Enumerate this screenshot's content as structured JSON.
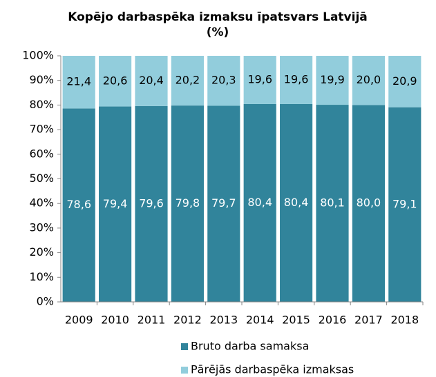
{
  "chart_data": {
    "type": "stacked_bar",
    "title": "Kopējo darbaspēka izmaksu īpatsvars Latvijā (%)",
    "categories": [
      "2009",
      "2010",
      "2011",
      "2012",
      "2013",
      "2014",
      "2015",
      "2016",
      "2017",
      "2018"
    ],
    "series": [
      {
        "name": "Bruto darba samaksa",
        "color": "#31849b",
        "values": [
          78.6,
          79.4,
          79.6,
          79.8,
          79.7,
          80.4,
          80.4,
          80.1,
          80.0,
          79.1
        ],
        "value_labels": [
          "78,6",
          "79,4",
          "79,6",
          "79,8",
          "79,7",
          "80,4",
          "80,4",
          "80,1",
          "80,0",
          "79,1"
        ]
      },
      {
        "name": "Pārējās darbaspēka izmaksas",
        "color": "#92cddc",
        "values": [
          21.4,
          20.6,
          20.4,
          20.2,
          20.3,
          19.6,
          19.6,
          19.9,
          20.0,
          20.9
        ],
        "value_labels": [
          "21,4",
          "20,6",
          "20,4",
          "20,2",
          "20,3",
          "19,6",
          "19,6",
          "19,9",
          "20,0",
          "20,9"
        ]
      }
    ],
    "ylim": [
      0,
      100
    ],
    "yticks": [
      {
        "value": 0,
        "label": "0%"
      },
      {
        "value": 10,
        "label": "10%"
      },
      {
        "value": 20,
        "label": "20%"
      },
      {
        "value": 30,
        "label": "30%"
      },
      {
        "value": 40,
        "label": "40%"
      },
      {
        "value": 50,
        "label": "50%"
      },
      {
        "value": 60,
        "label": "60%"
      },
      {
        "value": 70,
        "label": "70%"
      },
      {
        "value": 80,
        "label": "80%"
      },
      {
        "value": 90,
        "label": "90%"
      },
      {
        "value": 100,
        "label": "100%"
      }
    ],
    "legend": "bottom"
  }
}
